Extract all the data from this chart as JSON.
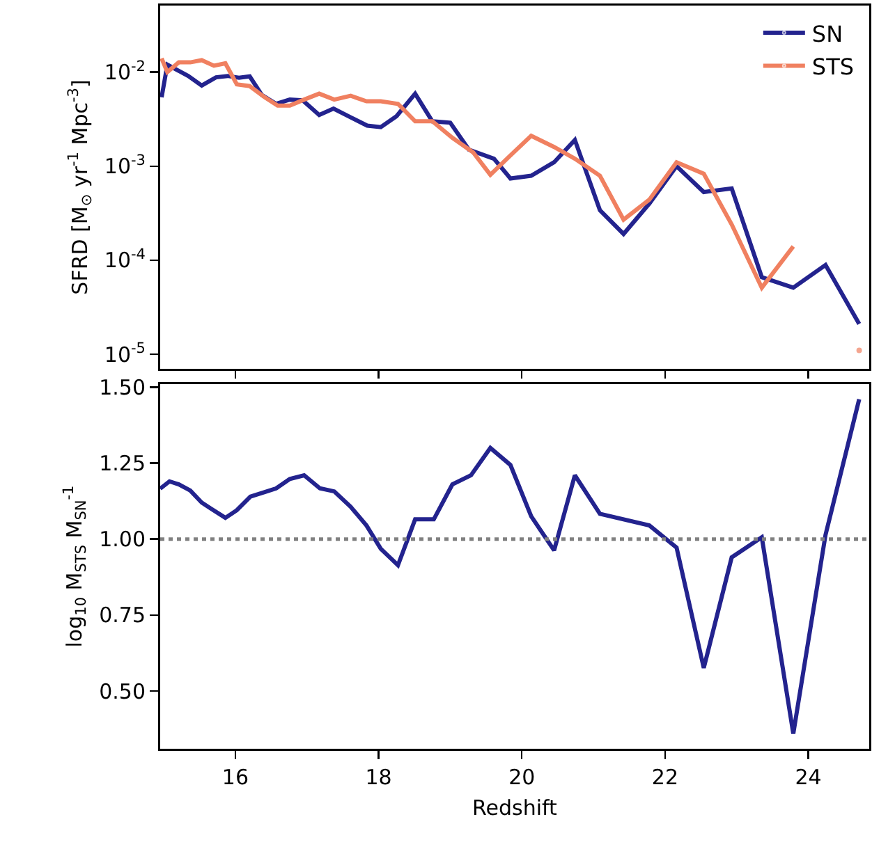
{
  "chart_data": [
    {
      "type": "line",
      "ylabel": "SFRD [M$_{⊙}$ yr$^{-1}$ Mpc$^{-3}$]",
      "log": "y",
      "legend": "top right",
      "tick_labels": "y",
      "xlim": [
        14.95,
        24.85
      ],
      "xticks": [
        {
          "value": 16,
          "label": null
        },
        {
          "value": 18,
          "label": null
        },
        {
          "value": 20,
          "label": null
        },
        {
          "value": 22,
          "label": null
        },
        {
          "value": 24,
          "label": null
        }
      ],
      "ylim": [
        7e-06,
        0.051
      ],
      "yticks": [
        {
          "value": 0.01,
          "label": "10$^{-2}$"
        },
        {
          "value": 0.001,
          "label": "10$^{-3}$"
        },
        {
          "value": 0.0001,
          "label": "10$^{-4}$"
        },
        {
          "value": 1e-05,
          "label": "10$^{-5}$"
        }
      ],
      "series": [
        {
          "name": "SN",
          "color": "#23238e",
          "x": [
            14.97,
            15.05,
            15.34,
            15.53,
            15.73,
            15.89,
            16.05,
            16.2,
            16.37,
            16.57,
            16.76,
            16.94,
            17.17,
            17.37,
            17.61,
            17.84,
            18.03,
            18.25,
            18.51,
            18.75,
            19.0,
            19.26,
            19.61,
            19.84,
            20.13,
            20.45,
            20.74,
            21.09,
            21.42,
            21.78,
            22.16,
            22.54,
            22.93,
            23.35,
            23.79,
            24.24,
            24.71
          ],
          "values": [
            0.0054,
            0.012,
            0.0091,
            0.0072,
            0.0088,
            0.0091,
            0.0087,
            0.009,
            0.0057,
            0.0046,
            0.0051,
            0.005,
            0.0035,
            0.0041,
            0.0033,
            0.0027,
            0.0026,
            0.0034,
            0.0059,
            0.003,
            0.0029,
            0.0015,
            0.0012,
            0.00074,
            0.00079,
            0.0011,
            0.0019,
            0.00034,
            0.00019,
            0.0004,
            0.001,
            0.00053,
            0.00058,
            6.6e-05,
            5.1e-05,
            8.9e-05,
            2.1e-05
          ]
        },
        {
          "name": "STS",
          "color": "#f08060",
          "x": [
            14.97,
            15.05,
            15.21,
            15.37,
            15.53,
            15.7,
            15.86,
            16.02,
            16.2,
            16.41,
            16.59,
            16.76,
            16.96,
            17.17,
            17.38,
            17.61,
            17.83,
            18.03,
            18.27,
            18.51,
            18.75,
            19.03,
            19.32,
            19.56,
            19.84,
            20.13,
            20.45,
            20.74,
            21.09,
            21.42,
            21.78,
            22.16,
            22.54,
            22.93,
            23.35,
            23.79,
            24.24,
            24.71
          ],
          "values": [
            0.014,
            0.01,
            0.0127,
            0.0127,
            0.0134,
            0.0117,
            0.0124,
            0.0074,
            0.0071,
            0.0054,
            0.0044,
            0.0044,
            0.0051,
            0.0059,
            0.0051,
            0.0056,
            0.0049,
            0.0049,
            0.0046,
            0.003,
            0.003,
            0.002,
            0.0014,
            0.00081,
            0.0013,
            0.0021,
            0.0016,
            0.0012,
            0.00079,
            0.00027,
            0.00044,
            0.0011,
            0.00083,
            0.00024,
            5.1e-05,
            0.00014,
            null,
            1.1e-05
          ]
        }
      ]
    },
    {
      "type": "line",
      "xlabel": "Redshift",
      "ylabel": "log$_{10}$ M$_{STS}$ M$_{SN}$$^{-1}$",
      "xlim": [
        14.95,
        24.85
      ],
      "xticks": [
        16,
        18,
        20,
        22,
        24
      ],
      "ylim": [
        0.31,
        1.51
      ],
      "yticks": [
        {
          "value": 0.5,
          "label": "0.50"
        },
        {
          "value": 0.75,
          "label": "0.75"
        },
        {
          "value": 1,
          "label": "1.00"
        },
        {
          "value": 1.25,
          "label": "1.25"
        },
        {
          "value": 1.5,
          "label": "1.50"
        }
      ],
      "ref_lines": [
        {
          "axis": "y",
          "value": 1,
          "color": "#808080",
          "line_style": "dotted"
        }
      ],
      "series": [
        {
          "color": "#23238e",
          "x": [
            14.95,
            15.08,
            15.21,
            15.37,
            15.53,
            15.66,
            15.86,
            16.02,
            16.21,
            16.41,
            16.57,
            16.76,
            16.96,
            17.18,
            17.38,
            17.61,
            17.83,
            18.03,
            18.27,
            18.51,
            18.77,
            19.03,
            19.29,
            19.56,
            19.84,
            20.13,
            20.45,
            20.74,
            21.09,
            21.78,
            22.16,
            22.54,
            22.93,
            23.35,
            23.79,
            24.24,
            24.71
          ],
          "values": [
            1.166,
            1.19,
            1.18,
            1.16,
            1.12,
            1.1,
            1.07,
            1.095,
            1.14,
            1.155,
            1.167,
            1.198,
            1.21,
            1.167,
            1.157,
            1.106,
            1.045,
            0.968,
            0.914,
            1.065,
            1.065,
            1.18,
            1.21,
            1.3,
            1.244,
            1.075,
            0.963,
            1.21,
            1.083,
            1.045,
            0.972,
            0.576,
            0.94,
            1.006,
            0.36,
            1.014,
            1.46
          ]
        }
      ]
    }
  ]
}
